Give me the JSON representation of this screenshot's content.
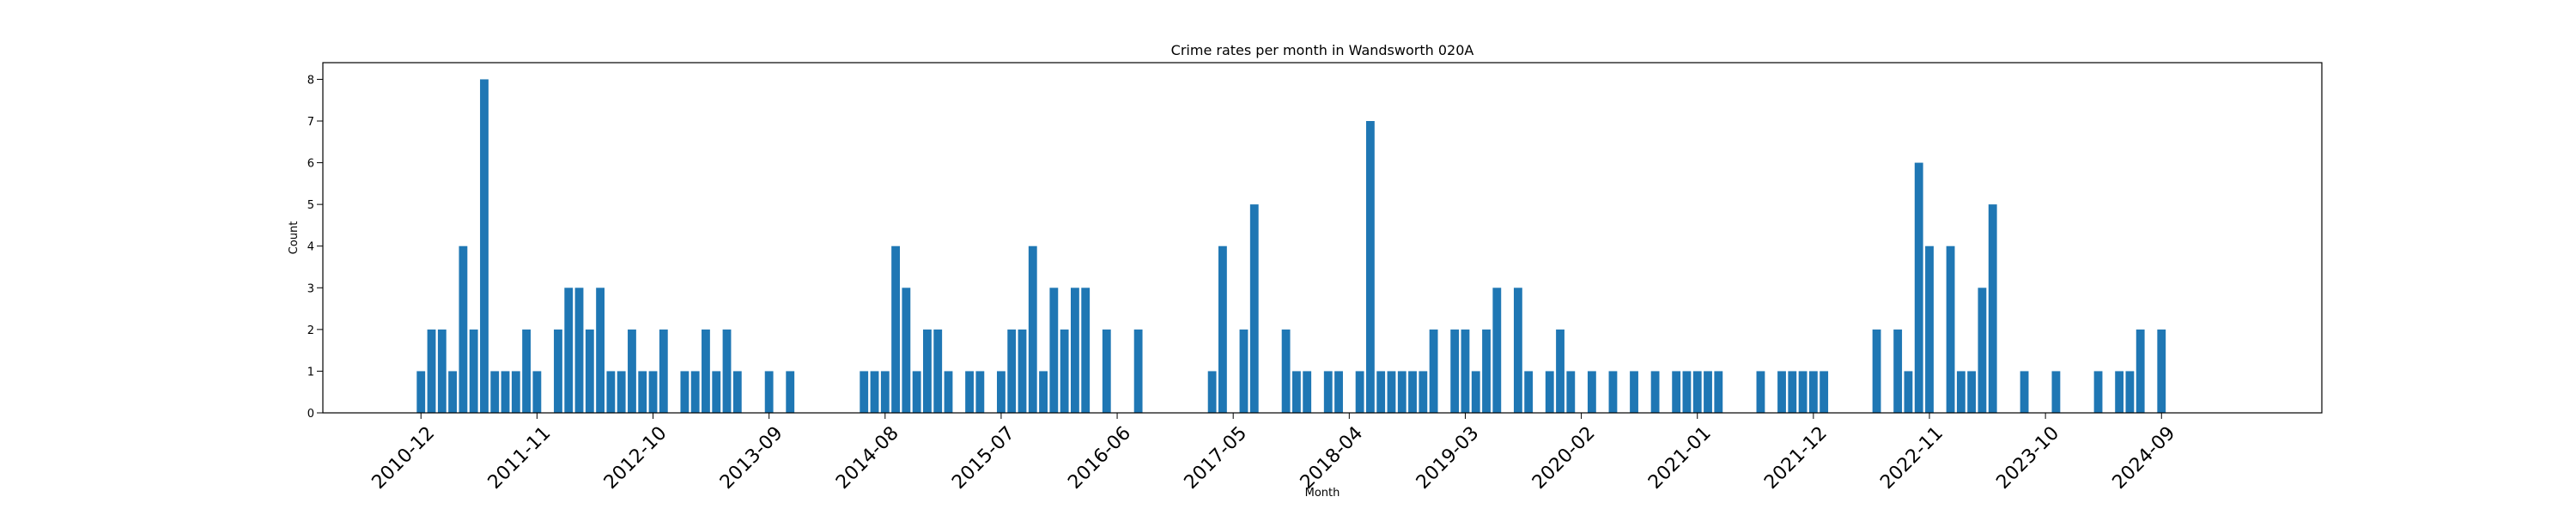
{
  "chart_data": {
    "type": "bar",
    "title": "Crime rates per month in Wandsworth 020A",
    "xlabel": "Month",
    "ylabel": "Count",
    "ylim": [
      0,
      8.4
    ],
    "yticks": [
      0,
      1,
      2,
      3,
      4,
      5,
      6,
      7,
      8
    ],
    "grid": false,
    "bar_color": "#1f77b4",
    "x_tick_labels": [
      "2010-12",
      "2011-11",
      "2012-10",
      "2013-09",
      "2014-08",
      "2015-07",
      "2016-06",
      "2017-05",
      "2018-04",
      "2019-03",
      "2020-02",
      "2021-01",
      "2021-12",
      "2022-11",
      "2023-10",
      "2024-09"
    ],
    "categories": [
      "2010-12",
      "2011-01",
      "2011-02",
      "2011-03",
      "2011-04",
      "2011-05",
      "2011-06",
      "2011-07",
      "2011-08",
      "2011-09",
      "2011-10",
      "2011-11",
      "2012-01",
      "2012-02",
      "2012-03",
      "2012-04",
      "2012-05",
      "2012-06",
      "2012-07",
      "2012-08",
      "2012-09",
      "2012-10",
      "2012-11",
      "2013-01",
      "2013-02",
      "2013-03",
      "2013-04",
      "2013-05",
      "2013-06",
      "2013-09",
      "2013-11",
      "2014-06",
      "2014-07",
      "2014-08",
      "2014-09",
      "2014-10",
      "2014-11",
      "2014-12",
      "2015-01",
      "2015-02",
      "2015-04",
      "2015-05",
      "2015-07",
      "2015-08",
      "2015-09",
      "2015-10",
      "2015-11",
      "2015-12",
      "2016-01",
      "2016-02",
      "2016-03",
      "2016-05",
      "2016-08",
      "2017-03",
      "2017-04",
      "2017-06",
      "2017-07",
      "2017-10",
      "2017-11",
      "2017-12",
      "2018-02",
      "2018-03",
      "2018-05",
      "2018-06",
      "2018-07",
      "2018-08",
      "2018-09",
      "2018-10",
      "2018-11",
      "2018-12",
      "2019-02",
      "2019-03",
      "2019-04",
      "2019-05",
      "2019-06",
      "2019-08",
      "2019-09",
      "2019-11",
      "2019-12",
      "2020-01",
      "2020-03",
      "2020-05",
      "2020-07",
      "2020-09",
      "2020-11",
      "2020-12",
      "2021-01",
      "2021-02",
      "2021-03",
      "2021-07",
      "2021-09",
      "2021-10",
      "2021-11",
      "2021-12",
      "2022-01",
      "2022-06",
      "2022-08",
      "2022-09",
      "2022-10",
      "2022-11",
      "2023-01",
      "2023-02",
      "2023-03",
      "2023-04",
      "2023-05",
      "2023-08",
      "2023-11",
      "2024-03",
      "2024-05",
      "2024-06",
      "2024-07",
      "2024-09"
    ],
    "values": [
      1,
      2,
      2,
      1,
      4,
      2,
      8,
      1,
      1,
      1,
      2,
      1,
      2,
      3,
      3,
      2,
      3,
      1,
      1,
      2,
      1,
      1,
      2,
      1,
      1,
      2,
      1,
      2,
      1,
      1,
      1,
      1,
      1,
      1,
      4,
      3,
      1,
      2,
      2,
      1,
      1,
      1,
      1,
      2,
      2,
      4,
      1,
      3,
      2,
      3,
      3,
      2,
      2,
      1,
      4,
      2,
      5,
      2,
      1,
      1,
      1,
      1,
      1,
      7,
      1,
      1,
      1,
      1,
      1,
      2,
      2,
      2,
      1,
      2,
      3,
      3,
      1,
      1,
      2,
      1,
      1,
      1,
      1,
      1,
      1,
      1,
      1,
      1,
      1,
      1,
      1,
      1,
      1,
      1,
      1,
      2,
      2,
      1,
      6,
      4,
      4,
      1,
      1,
      3,
      5,
      1,
      1,
      1,
      1,
      1,
      2,
      2
    ]
  }
}
